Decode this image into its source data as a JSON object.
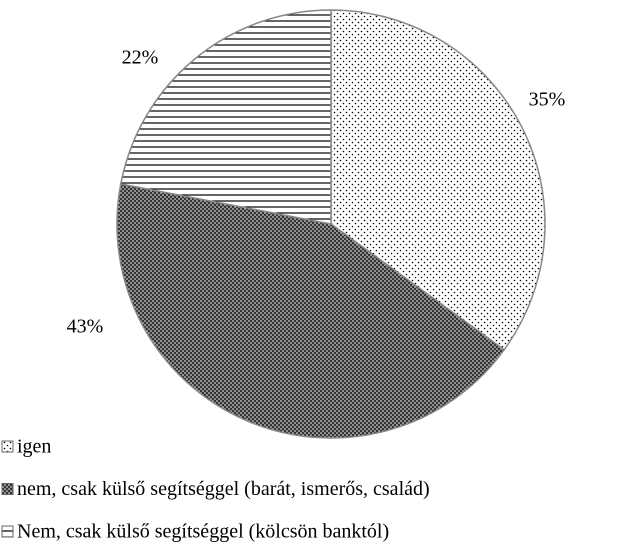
{
  "chart_data": {
    "type": "pie",
    "categories": [
      "igen",
      "nem, csak külső segítséggel (barát, ismerős, család)",
      "Nem, csak külső segítséggel (kölcsön banktól)"
    ],
    "values": [
      35,
      43,
      22
    ],
    "value_labels": [
      "35%",
      "43%",
      "22%"
    ]
  }
}
